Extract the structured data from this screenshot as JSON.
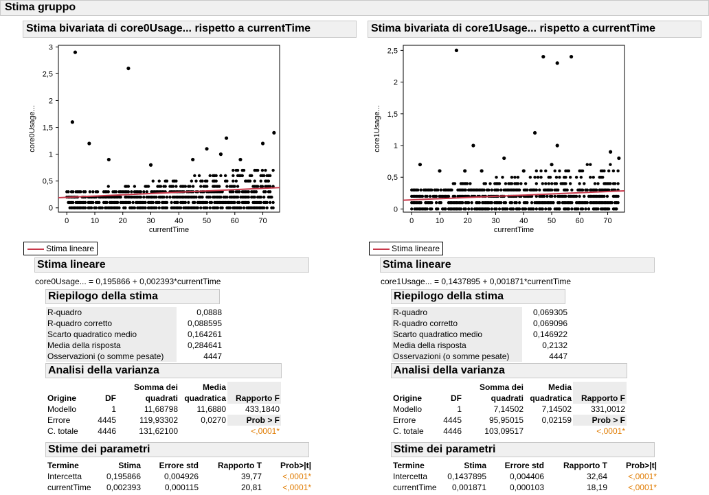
{
  "group_title": "Stima gruppo",
  "colors": {
    "fit_line": "#c8384a",
    "significant": "#e07b00",
    "header_bg": "#f0f0f0"
  },
  "panels": [
    {
      "title": "Stima bivariata di core0Usage... rispetto a currentTime",
      "legend_label": "Stima lineare",
      "fit_header": "Stima lineare",
      "equation": "core0Usage... = 0,195866 + 0,002393*currentTime",
      "summary_header": "Riepilogo della stima",
      "summary": [
        {
          "label": "R-quadro",
          "value": "0,0888"
        },
        {
          "label": "R-quadro corretto",
          "value": "0,088595"
        },
        {
          "label": "Scarto quadratico medio",
          "value": "0,164261"
        },
        {
          "label": "Media della risposta",
          "value": "0,284641"
        },
        {
          "label": "Osservazioni (o somme pesate)",
          "value": "4447"
        }
      ],
      "anova_header": "Analisi della varianza",
      "anova_cols": {
        "origin": "Origine",
        "df": "DF",
        "ss1": "Somma dei",
        "ss2": "quadrati",
        "ms1": "Media",
        "ms2": "quadratica",
        "f": "Rapporto F"
      },
      "anova_rows": [
        {
          "origin": "Modello",
          "df": "1",
          "ss": "11,68798",
          "ms": "11,6880",
          "f": "433,1840"
        },
        {
          "origin": "Errore",
          "df": "4445",
          "ss": "119,93302",
          "ms": "0,0270",
          "f": "Prob > F"
        },
        {
          "origin": "C. totale",
          "df": "4446",
          "ss": "131,62100",
          "ms": "",
          "f": "<,0001*"
        }
      ],
      "params_header": "Stime dei parametri",
      "params_cols": {
        "term": "Termine",
        "est": "Stima",
        "se": "Errore std",
        "t": "Rapporto T",
        "p": "Prob>|t|"
      },
      "params_rows": [
        {
          "term": "Intercetta",
          "est": "0,195866",
          "se": "0,004926",
          "t": "39,77",
          "p": "<,0001*"
        },
        {
          "term": "currentTime",
          "est": "0,002393",
          "se": "0,000115",
          "t": "20,81",
          "p": "<,0001*"
        }
      ]
    },
    {
      "title": "Stima bivariata di core1Usage... rispetto a currentTime",
      "legend_label": "Stima lineare",
      "fit_header": "Stima lineare",
      "equation": "core1Usage... = 0,1437895 + 0,001871*currentTime",
      "summary_header": "Riepilogo della stima",
      "summary": [
        {
          "label": "R-quadro",
          "value": "0,069305"
        },
        {
          "label": "R-quadro corretto",
          "value": "0,069096"
        },
        {
          "label": "Scarto quadratico medio",
          "value": "0,146922"
        },
        {
          "label": "Media della risposta",
          "value": "0,2132"
        },
        {
          "label": "Osservazioni (o somme pesate)",
          "value": "4447"
        }
      ],
      "anova_header": "Analisi della varianza",
      "anova_cols": {
        "origin": "Origine",
        "df": "DF",
        "ss1": "Somma dei",
        "ss2": "quadrati",
        "ms1": "Media",
        "ms2": "quadratica",
        "f": "Rapporto F"
      },
      "anova_rows": [
        {
          "origin": "Modello",
          "df": "1",
          "ss": "7,14502",
          "ms": "7,14502",
          "f": "331,0012"
        },
        {
          "origin": "Errore",
          "df": "4445",
          "ss": "95,95015",
          "ms": "0,02159",
          "f": "Prob > F"
        },
        {
          "origin": "C. totale",
          "df": "4446",
          "ss": "103,09517",
          "ms": "",
          "f": "<,0001*"
        }
      ],
      "params_header": "Stime dei parametri",
      "params_cols": {
        "term": "Termine",
        "est": "Stima",
        "se": "Errore std",
        "t": "Rapporto T",
        "p": "Prob>|t|"
      },
      "params_rows": [
        {
          "term": "Intercetta",
          "est": "0,1437895",
          "se": "0,004406",
          "t": "32,64",
          "p": "<,0001*"
        },
        {
          "term": "currentTime",
          "est": "0,001871",
          "se": "0,000103",
          "t": "18,19",
          "p": "<,0001*"
        }
      ]
    }
  ],
  "chart_data": [
    {
      "type": "scatter",
      "xlabel": "currentTime",
      "ylabel": "core0Usage...",
      "xlim": [
        -3,
        76
      ],
      "ylim": [
        -0.08,
        3.03
      ],
      "xticks": [
        "0",
        "10",
        "20",
        "30",
        "40",
        "50",
        "60",
        "70"
      ],
      "yticks": [
        "0",
        "0,5",
        "1",
        "1,5",
        "2",
        "2,5",
        "3"
      ],
      "fit": {
        "intercept": 0.195866,
        "slope": 0.002393
      },
      "outliers": [
        [
          2,
          1.6
        ],
        [
          3,
          2.9
        ],
        [
          8,
          1.2
        ],
        [
          15,
          0.9
        ],
        [
          22,
          2.6
        ],
        [
          30,
          0.8
        ],
        [
          45,
          0.9
        ],
        [
          50,
          1.1
        ],
        [
          55,
          1.0
        ],
        [
          57,
          1.3
        ],
        [
          62,
          0.9
        ],
        [
          70,
          1.2
        ],
        [
          74,
          1.4
        ]
      ]
    },
    {
      "type": "scatter",
      "xlabel": "currentTime",
      "ylabel": "core1Usage...",
      "xlim": [
        -3,
        76
      ],
      "ylim": [
        -0.05,
        2.58
      ],
      "xticks": [
        "0",
        "10",
        "20",
        "30",
        "40",
        "50",
        "60",
        "70"
      ],
      "yticks": [
        "0",
        "0,5",
        "1",
        "1,5",
        "2",
        "2,5"
      ],
      "fit": {
        "intercept": 0.1437895,
        "slope": 0.001871
      },
      "outliers": [
        [
          3,
          0.7
        ],
        [
          10,
          0.6
        ],
        [
          16,
          2.5
        ],
        [
          19,
          0.6
        ],
        [
          22,
          1.0
        ],
        [
          25,
          0.6
        ],
        [
          33,
          0.8
        ],
        [
          40,
          0.6
        ],
        [
          44,
          1.2
        ],
        [
          47,
          2.4
        ],
        [
          50,
          0.7
        ],
        [
          52,
          2.3
        ],
        [
          52,
          1.0
        ],
        [
          57,
          2.4
        ],
        [
          71,
          0.9
        ],
        [
          74,
          0.8
        ]
      ]
    }
  ]
}
